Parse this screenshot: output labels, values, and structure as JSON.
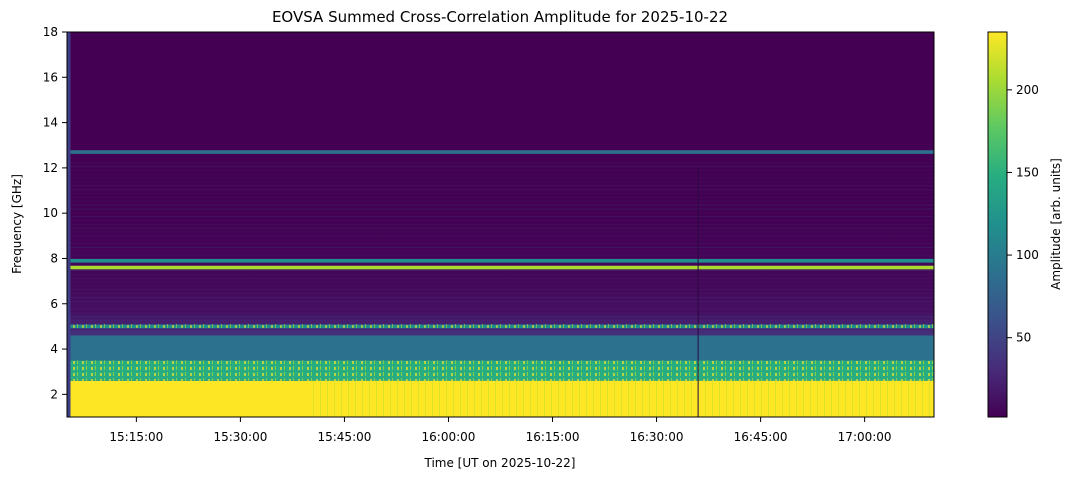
{
  "chart_data": {
    "type": "heatmap",
    "title": "EOVSA Summed Cross-Correlation Amplitude for 2025-10-22",
    "xlabel": "Time [UT on 2025-10-22]",
    "ylabel": "Frequency [GHz]",
    "x_range": [
      "15:05:00",
      "17:10:00"
    ],
    "ylim": [
      1.0,
      18.0
    ],
    "x_ticks": [
      "15:15:00",
      "15:30:00",
      "15:45:00",
      "16:00:00",
      "16:15:00",
      "16:30:00",
      "16:45:00",
      "17:00:00"
    ],
    "y_ticks": [
      2,
      4,
      6,
      8,
      10,
      12,
      14,
      16,
      18
    ],
    "colorbar": {
      "label": "Amplitude [arb. units]",
      "range": [
        2,
        235
      ],
      "ticks": [
        50,
        100,
        150,
        200
      ],
      "colormap": [
        "#440154",
        "#472c7a",
        "#3b518b",
        "#2c718e",
        "#21908d",
        "#27ad81",
        "#5cc863",
        "#aadc32",
        "#fde725"
      ]
    },
    "colorscale": "viridis",
    "grid": false,
    "features": [
      {
        "freq_ghz": [
          1.0,
          2.6
        ],
        "time": [
          "15:05:30",
          "17:10:00"
        ],
        "amplitude": 235
      },
      {
        "freq_ghz": [
          2.6,
          3.5
        ],
        "time": [
          "15:05:30",
          "17:10:00"
        ],
        "amplitude": 160
      },
      {
        "freq_ghz": [
          3.5,
          4.6
        ],
        "time": [
          "15:05:30",
          "17:10:00"
        ],
        "amplitude": 85
      },
      {
        "freq_ghz": 5.0,
        "time": [
          "15:05:30",
          "17:10:00"
        ],
        "amplitude": 120
      },
      {
        "freq_ghz": 7.6,
        "time": [
          "15:05:30",
          "17:10:00"
        ],
        "amplitude": 200
      },
      {
        "freq_ghz": 7.9,
        "time": [
          "15:05:30",
          "17:10:00"
        ],
        "amplitude": 110
      },
      {
        "freq_ghz": 12.7,
        "time": [
          "15:05:30",
          "17:10:00"
        ],
        "amplitude": 90
      }
    ]
  }
}
